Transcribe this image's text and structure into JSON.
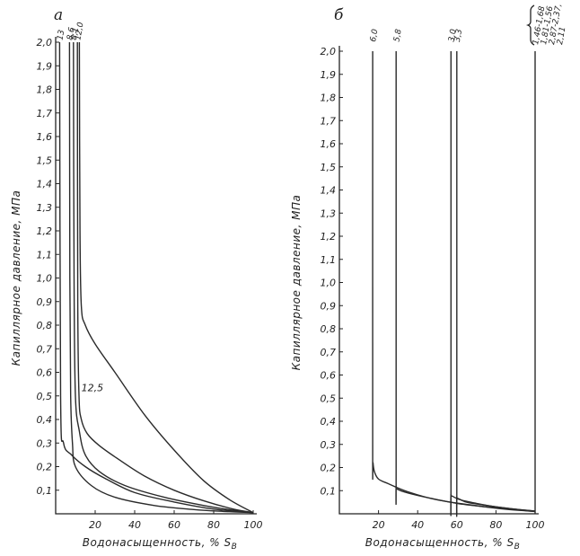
{
  "chart_data": [
    {
      "type": "line",
      "panel": "a",
      "ylabel": "Капиллярное давление, МПа",
      "xlabel": "Водонасыщенность, % S",
      "xlabel_sub": "В",
      "xlim": [
        0,
        100
      ],
      "ylim": [
        0,
        2.0
      ],
      "x_ticks": [
        "20",
        "40",
        "60",
        "80",
        "100"
      ],
      "y_ticks": [
        "0,1",
        "0,2",
        "0,3",
        "0,4",
        "0,5",
        "0,6",
        "0,7",
        "0,8",
        "0,9",
        "1,0",
        "1,1",
        "1,2",
        "1,3",
        "1,4",
        "1,5",
        "1,6",
        "1,7",
        "1,8",
        "1,9",
        "2,0"
      ],
      "inline_label": "12,5",
      "series": [
        {
          "name": "13",
          "x": [
            2,
            2.5,
            4,
            8,
            15,
            25,
            40,
            60,
            80,
            100
          ],
          "y": [
            2.0,
            0.5,
            0.3,
            0.25,
            0.2,
            0.15,
            0.09,
            0.05,
            0.02,
            0.005
          ]
        },
        {
          "name": "8,6",
          "x": [
            7,
            7.2,
            7.6,
            8.5,
            10,
            18,
            30,
            50,
            70,
            85,
            100
          ],
          "y": [
            2.0,
            1.0,
            0.5,
            0.3,
            0.2,
            0.12,
            0.07,
            0.035,
            0.018,
            0.01,
            0.005
          ]
        },
        {
          "name": "8,1",
          "x": [
            9,
            9.3,
            10,
            12,
            15,
            22,
            35,
            55,
            75,
            90,
            100
          ],
          "y": [
            2.0,
            1.0,
            0.5,
            0.35,
            0.25,
            0.18,
            0.12,
            0.07,
            0.035,
            0.015,
            0.005
          ]
        },
        {
          "name": "12,0",
          "x": [
            11,
            11.2,
            11.8,
            13,
            16,
            22,
            32,
            45,
            60,
            75,
            90,
            100
          ],
          "y": [
            2.0,
            0.9,
            0.5,
            0.4,
            0.34,
            0.29,
            0.23,
            0.16,
            0.1,
            0.055,
            0.02,
            0.005
          ]
        },
        {
          "name": "",
          "x": [
            12,
            12.3,
            13,
            15,
            20,
            30,
            45,
            60,
            75,
            88,
            100
          ],
          "y": [
            2.0,
            1.2,
            0.88,
            0.8,
            0.72,
            0.6,
            0.42,
            0.27,
            0.14,
            0.06,
            0.005
          ]
        }
      ]
    },
    {
      "type": "line",
      "panel": "б",
      "ylabel": "Капиллярное давление, МПа",
      "xlabel": "Водонасыщенность, % S",
      "xlabel_sub": "В",
      "xlim": [
        0,
        100
      ],
      "ylim": [
        0,
        2.0
      ],
      "x_ticks": [
        "20",
        "40",
        "60",
        "80",
        "100"
      ],
      "y_ticks": [
        "0,1",
        "0,2",
        "0,3",
        "0,4",
        "0,5",
        "0,6",
        "0,7",
        "0,8",
        "0,9",
        "1,0",
        "1,1",
        "1,2",
        "1,3",
        "1,4",
        "1,5",
        "1,6",
        "1,7",
        "1,8",
        "1,9",
        "2,0"
      ],
      "group_labels": [
        "1,46-1,68",
        "1,81-1,56",
        "2,87-2,37,",
        "2,11"
      ],
      "series": [
        {
          "name": "6,0",
          "x": [
            17,
            17,
            17.2,
            18,
            20,
            25,
            35,
            50,
            70,
            85,
            100
          ],
          "y": [
            2.0,
            0.3,
            0.22,
            0.18,
            0.15,
            0.13,
            0.095,
            0.06,
            0.035,
            0.02,
            0.01
          ]
        },
        {
          "name": "5,8",
          "x": [
            29,
            29,
            29,
            30,
            35,
            45,
            60,
            75,
            90,
            100
          ],
          "y": [
            2.0,
            0.2,
            0.12,
            0.105,
            0.09,
            0.07,
            0.045,
            0.03,
            0.018,
            0.01
          ]
        },
        {
          "name": "3,0",
          "x": [
            57,
            57,
            57,
            58,
            62,
            70,
            80,
            90,
            100
          ],
          "y": [
            2.0,
            0.15,
            0.085,
            0.075,
            0.06,
            0.045,
            0.03,
            0.02,
            0.012
          ]
        },
        {
          "name": "3,3",
          "x": [
            60,
            60,
            60,
            61,
            65,
            72,
            82,
            92,
            100
          ],
          "y": [
            2.0,
            0.15,
            0.075,
            0.065,
            0.05,
            0.04,
            0.028,
            0.018,
            0.012
          ]
        },
        {
          "name": "",
          "x": [
            100,
            100
          ],
          "y": [
            2.0,
            0.0
          ]
        }
      ]
    }
  ]
}
